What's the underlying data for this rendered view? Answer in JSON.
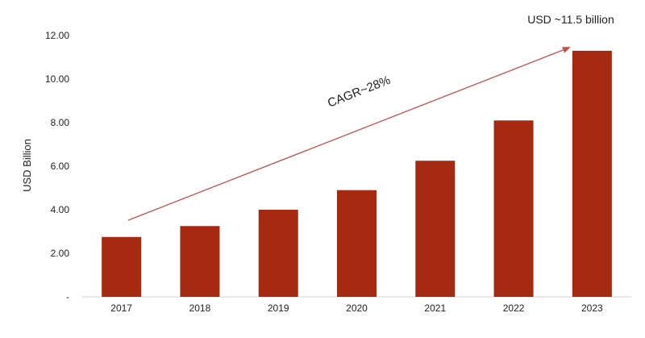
{
  "chart_data": {
    "type": "bar",
    "categories": [
      "2017",
      "2018",
      "2019",
      "2020",
      "2021",
      "2022",
      "2023"
    ],
    "values": [
      2.75,
      3.25,
      4.0,
      4.9,
      6.25,
      8.1,
      11.3
    ],
    "ylabel": "USD Billion",
    "xlabel": "",
    "ylim": [
      0,
      12
    ],
    "yticks": [
      0,
      2,
      4,
      6,
      8,
      10,
      12
    ],
    "ytick_labels": [
      "-",
      "2.00",
      "4.00",
      "6.00",
      "8.00",
      "10.00",
      "12.00"
    ],
    "grid": false,
    "bar_color": "#a52a11",
    "annotations": {
      "growth_label": "CAGR~28%",
      "end_value_label": "USD ~11.5 billion",
      "arrow_color": "#c0504d"
    }
  }
}
